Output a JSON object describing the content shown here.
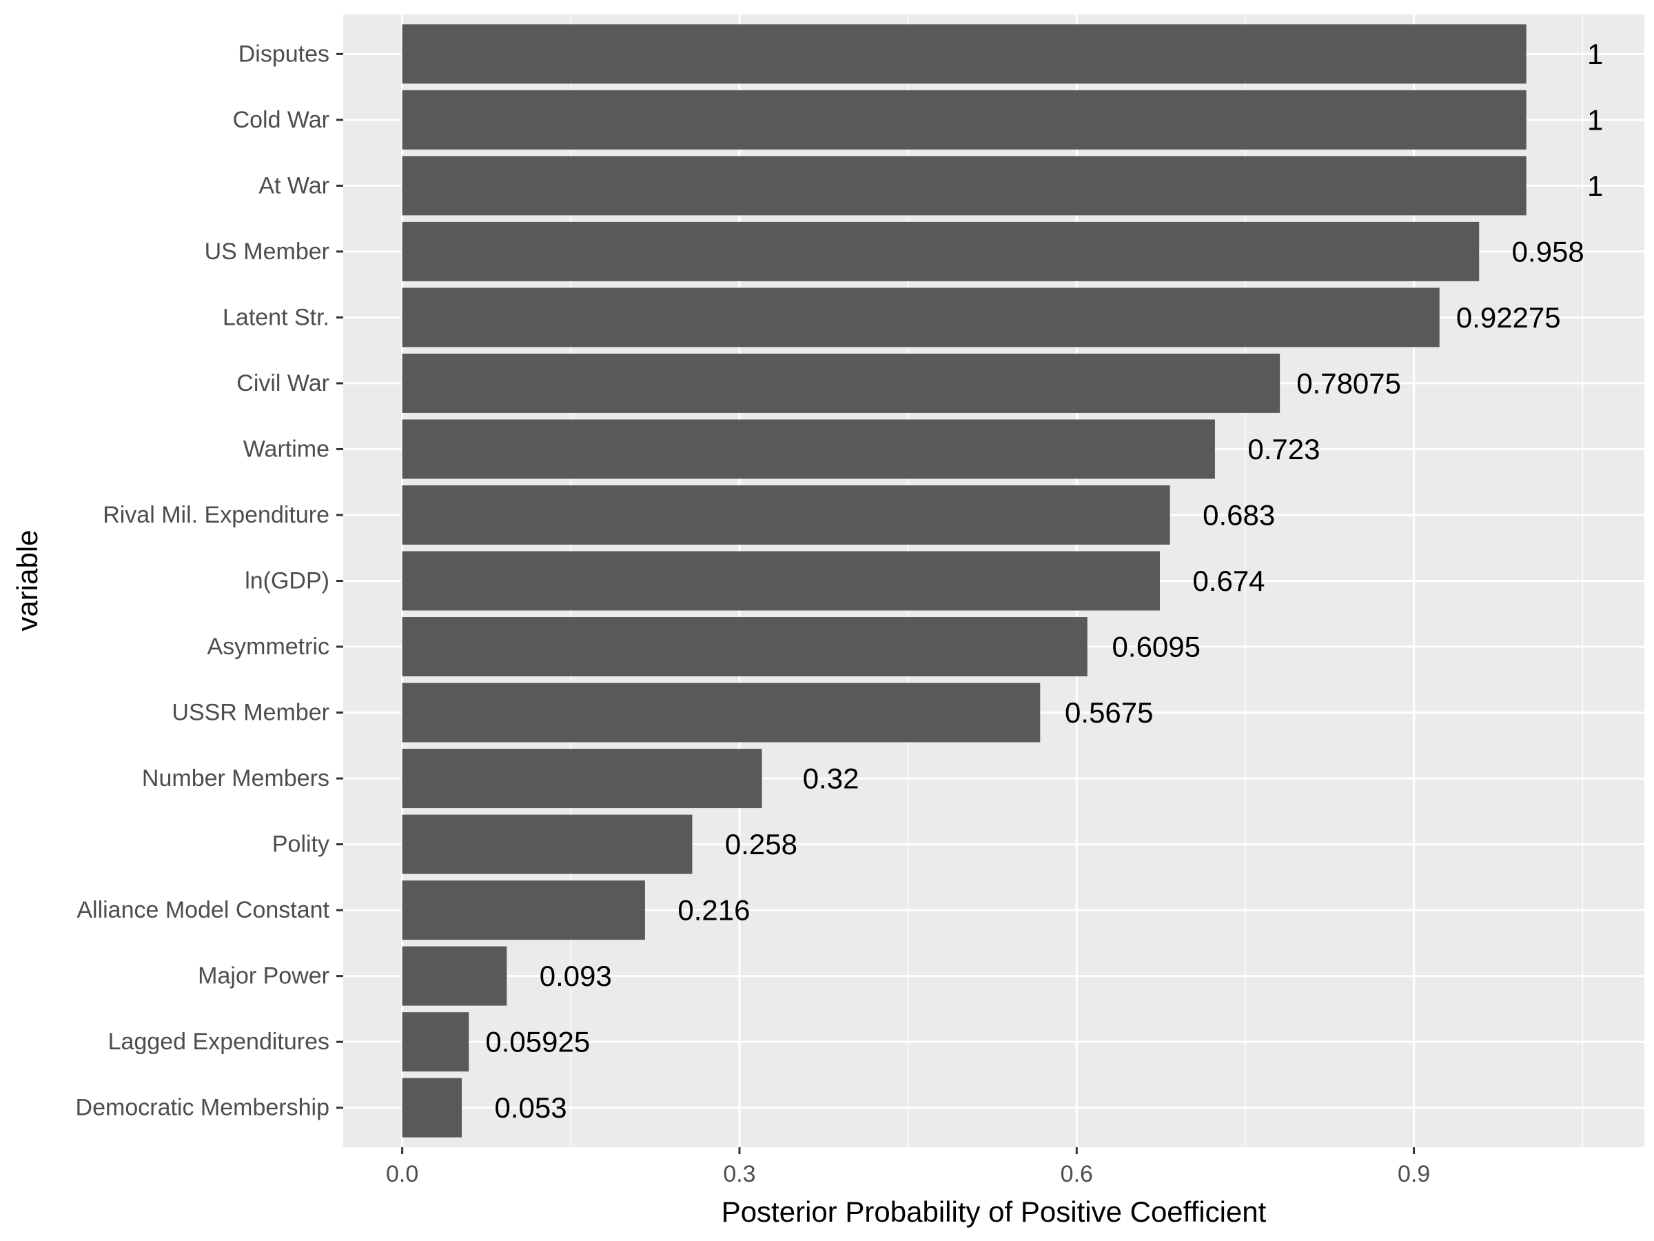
{
  "chart_data": {
    "type": "bar",
    "orientation": "horizontal",
    "title": "",
    "xlabel": "Posterior Probability of Positive Coefficient",
    "ylabel": "variable",
    "categories": [
      "Disputes",
      "Cold War",
      "At War",
      "US Member",
      "Latent Str.",
      "Civil War",
      "Wartime",
      "Rival Mil. Expenditure",
      "ln(GDP)",
      "Asymmetric",
      "USSR Member",
      "Number Members",
      "Polity",
      "Alliance Model Constant",
      "Major Power",
      "Lagged Expenditures",
      "Democratic Membership"
    ],
    "values": [
      1,
      1,
      1,
      0.958,
      0.92275,
      0.78075,
      0.723,
      0.683,
      0.674,
      0.6095,
      0.5675,
      0.32,
      0.258,
      0.216,
      0.093,
      0.05925,
      0.053
    ],
    "data_labels": [
      "1",
      "1",
      "1",
      "0.958",
      "0.92275",
      "0.78075",
      "0.723",
      "0.683",
      "0.674",
      "0.6095",
      "0.5675",
      "0.32",
      "0.258",
      "0.216",
      "0.093",
      "0.05925",
      "0.053"
    ],
    "xlim": [
      -0.0525,
      1.105
    ],
    "xticks": [
      0.0,
      0.3,
      0.6,
      0.9
    ],
    "xtick_labels": [
      "0.0",
      "0.3",
      "0.6",
      "0.9"
    ],
    "grid": true,
    "legend": "none",
    "colors": {
      "bar": "#595959",
      "panel_background": "#ebebeb",
      "grid": "#ffffff",
      "tick_text": "#4d4d4d",
      "text": "#000000"
    }
  }
}
